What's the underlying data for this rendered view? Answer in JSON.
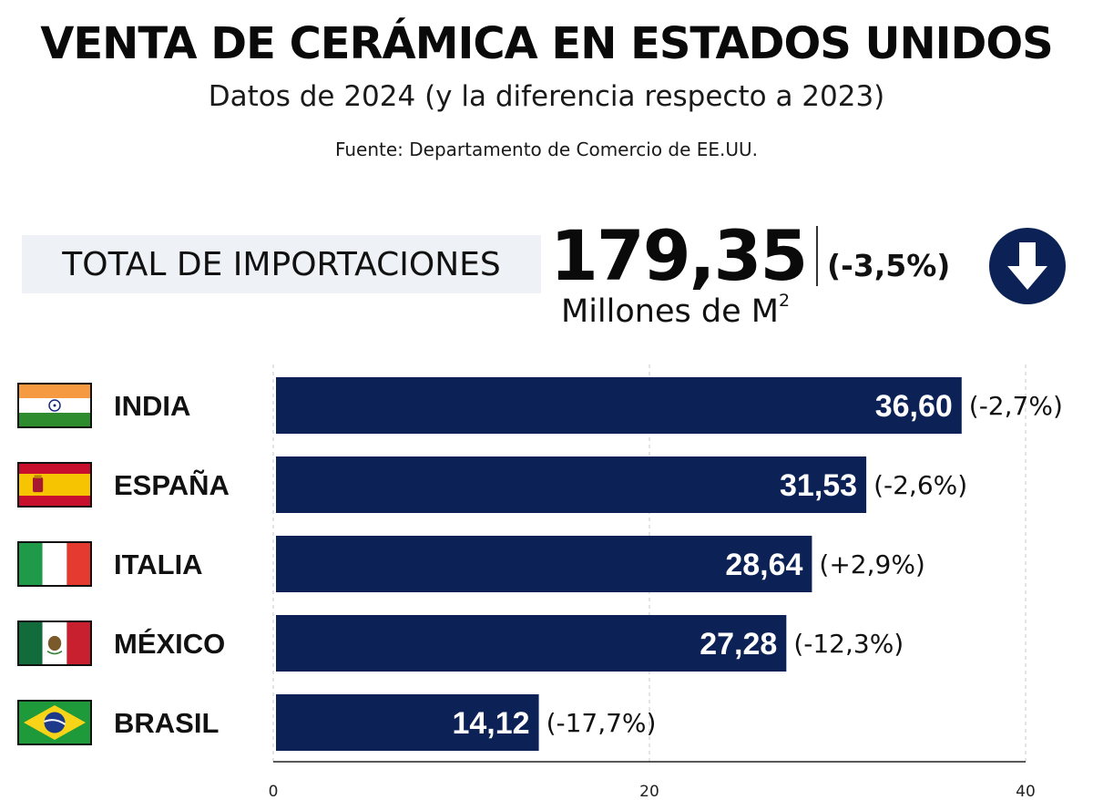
{
  "header": {
    "title": "VENTA DE CERÁMICA EN ESTADOS UNIDOS",
    "subtitle": "Datos de 2024 (y la diferencia respecto a 2023)",
    "source": "Fuente: Departamento de Comercio de EE.UU."
  },
  "summary": {
    "label": "TOTAL DE IMPORTACIONES",
    "value": "179,35",
    "change": "(-3,5%)",
    "unit": "Millones de M",
    "unit_exponent": "2",
    "trend_icon": "arrow-down-circle-icon"
  },
  "colors": {
    "bar": "#0c2257",
    "icon_bg": "#0c2257",
    "label_bg": "#eef2f6"
  },
  "chart_data": {
    "type": "bar",
    "orientation": "horizontal",
    "categories": [
      "INDIA",
      "ESPAÑA",
      "ITALIA",
      "MÉXICO",
      "BRASIL"
    ],
    "values": [
      36.6,
      31.53,
      28.64,
      27.28,
      14.12
    ],
    "value_labels": [
      "36,60",
      "31,53",
      "28,64",
      "27,28",
      "14,12"
    ],
    "change_labels": [
      "(-2,7%)",
      "(-2,6%)",
      "(+2,9%)",
      "(-12,3%)",
      "(-17,7%)"
    ],
    "flags": [
      "india-flag-icon",
      "spain-flag-icon",
      "italy-flag-icon",
      "mexico-flag-icon",
      "brazil-flag-icon"
    ],
    "xlim": [
      0,
      40
    ],
    "xticks": [
      0,
      20,
      40
    ],
    "xtick_labels": [
      "0",
      "20",
      "40"
    ],
    "grid": true
  }
}
